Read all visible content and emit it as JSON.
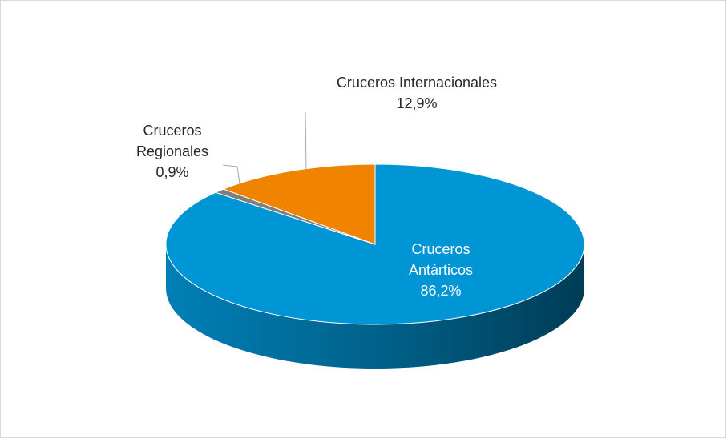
{
  "chart_data": {
    "type": "pie",
    "categories": [
      "Cruceros Antárticos",
      "Cruceros Regionales",
      "Cruceros Internacionales"
    ],
    "values": [
      86.2,
      0.9,
      12.9
    ],
    "value_labels": [
      "86,2%",
      "0,9%",
      "12,9%"
    ],
    "colors": [
      "#0096d6",
      "#7f7f7f",
      "#f08400"
    ]
  }
}
